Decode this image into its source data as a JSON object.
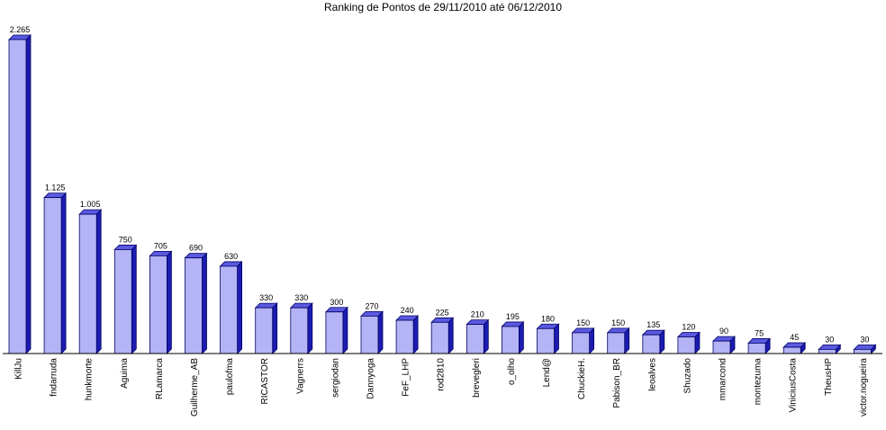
{
  "chart_data": {
    "type": "bar",
    "title": "Ranking de Pontos de 29/11/2010 até 06/12/2010",
    "xlabel": "",
    "ylabel": "",
    "ylim": [
      0,
      2265
    ],
    "grid": false,
    "legend": "none",
    "style": "3d",
    "categories": [
      "KillJu",
      "fndarruda",
      "hunkmorte",
      "Aguima",
      "RLamarca",
      "Guilherme_AB",
      "paulofma",
      "RICASTOR",
      "Vagnerrs",
      "sergiodan",
      "Dannyoga",
      "FeF_LHP",
      "rod2810",
      "brevegleri",
      "o_olho",
      "Lend@",
      "ChuckieH.",
      "Pabison_BR",
      "leoalves",
      "Shuzado",
      "mmarcond",
      "montezuma",
      "ViniciusCosta",
      "TheusHP",
      "victor.nogueira"
    ],
    "values": [
      2265,
      1125,
      1005,
      750,
      705,
      690,
      630,
      330,
      330,
      300,
      270,
      240,
      225,
      210,
      195,
      180,
      150,
      150,
      135,
      120,
      90,
      75,
      45,
      30,
      30
    ],
    "value_labels": [
      "2.265",
      "1.125",
      "1.005",
      "750",
      "705",
      "690",
      "630",
      "330",
      "330",
      "300",
      "270",
      "240",
      "225",
      "210",
      "195",
      "180",
      "150",
      "150",
      "135",
      "120",
      "90",
      "75",
      "45",
      "30",
      "30"
    ]
  },
  "colors": {
    "bar_front": "#b3b3f5",
    "bar_side": "#1c1cb0",
    "bar_top": "#5a5ae0",
    "bar_outline": "#000066",
    "axis": "#000000"
  }
}
